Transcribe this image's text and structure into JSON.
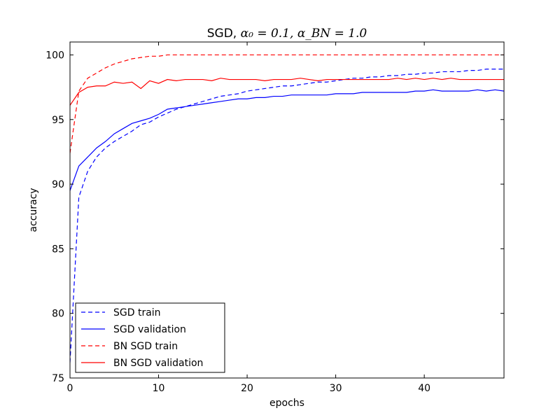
{
  "chart_data": {
    "type": "line",
    "title_prefix": "SGD, ",
    "title_math": "α₀ = 0.1,  α_BN = 1.0",
    "xlabel": "epochs",
    "ylabel": "accuracy",
    "xlim": [
      0,
      49
    ],
    "ylim": [
      75,
      101
    ],
    "xticks": [
      0,
      10,
      20,
      30,
      40
    ],
    "yticks": [
      75,
      80,
      85,
      90,
      95,
      100
    ],
    "legend_position": "bottom-left",
    "grid": false,
    "series": [
      {
        "name": "SGD train",
        "color": "#0000ff",
        "dash": true,
        "x": [
          0,
          1,
          2,
          3,
          4,
          5,
          6,
          7,
          8,
          9,
          10,
          11,
          12,
          13,
          14,
          15,
          16,
          17,
          18,
          19,
          20,
          21,
          22,
          23,
          24,
          25,
          26,
          27,
          28,
          29,
          30,
          31,
          32,
          33,
          34,
          35,
          36,
          37,
          38,
          39,
          40,
          41,
          42,
          43,
          44,
          45,
          46,
          47,
          48,
          49
        ],
        "y": [
          76.2,
          89.0,
          91.0,
          92.1,
          92.8,
          93.3,
          93.7,
          94.1,
          94.6,
          94.8,
          95.2,
          95.5,
          95.8,
          96.0,
          96.2,
          96.4,
          96.6,
          96.8,
          96.9,
          97.0,
          97.2,
          97.3,
          97.4,
          97.5,
          97.6,
          97.6,
          97.7,
          97.8,
          97.9,
          97.9,
          98.0,
          98.1,
          98.2,
          98.2,
          98.3,
          98.3,
          98.4,
          98.4,
          98.5,
          98.5,
          98.6,
          98.6,
          98.7,
          98.7,
          98.7,
          98.8,
          98.8,
          98.9,
          98.9,
          98.9
        ]
      },
      {
        "name": "SGD validation",
        "color": "#0000ff",
        "dash": false,
        "x": [
          0,
          1,
          2,
          3,
          4,
          5,
          6,
          7,
          8,
          9,
          10,
          11,
          12,
          13,
          14,
          15,
          16,
          17,
          18,
          19,
          20,
          21,
          22,
          23,
          24,
          25,
          26,
          27,
          28,
          29,
          30,
          31,
          32,
          33,
          34,
          35,
          36,
          37,
          38,
          39,
          40,
          41,
          42,
          43,
          44,
          45,
          46,
          47,
          48,
          49
        ],
        "y": [
          89.5,
          91.4,
          92.1,
          92.8,
          93.3,
          93.9,
          94.3,
          94.7,
          94.9,
          95.1,
          95.4,
          95.8,
          95.9,
          96.0,
          96.1,
          96.2,
          96.3,
          96.4,
          96.5,
          96.6,
          96.6,
          96.7,
          96.7,
          96.8,
          96.8,
          96.9,
          96.9,
          96.9,
          96.9,
          96.9,
          97.0,
          97.0,
          97.0,
          97.1,
          97.1,
          97.1,
          97.1,
          97.1,
          97.1,
          97.2,
          97.2,
          97.3,
          97.2,
          97.2,
          97.2,
          97.2,
          97.3,
          97.2,
          97.3,
          97.2
        ]
      },
      {
        "name": "BN SGD train",
        "color": "#ff0000",
        "dash": true,
        "x": [
          0,
          1,
          2,
          3,
          4,
          5,
          6,
          7,
          8,
          9,
          10,
          11,
          12,
          13,
          14,
          15,
          16,
          17,
          18,
          19,
          20,
          21,
          22,
          23,
          24,
          25,
          26,
          27,
          28,
          29,
          30,
          31,
          32,
          33,
          34,
          35,
          36,
          37,
          38,
          39,
          40,
          41,
          42,
          43,
          44,
          45,
          46,
          47,
          48,
          49
        ],
        "y": [
          92.4,
          97.2,
          98.2,
          98.6,
          99.0,
          99.3,
          99.5,
          99.7,
          99.8,
          99.9,
          99.9,
          100,
          100,
          100,
          100,
          100,
          100,
          100,
          100,
          100,
          100,
          100,
          100,
          100,
          100,
          100,
          100,
          100,
          100,
          100,
          100,
          100,
          100,
          100,
          100,
          100,
          100,
          100,
          100,
          100,
          100,
          100,
          100,
          100,
          100,
          100,
          100,
          100,
          100,
          100
        ]
      },
      {
        "name": "BN SGD validation",
        "color": "#ff0000",
        "dash": false,
        "x": [
          0,
          1,
          2,
          3,
          4,
          5,
          6,
          7,
          8,
          9,
          10,
          11,
          12,
          13,
          14,
          15,
          16,
          17,
          18,
          19,
          20,
          21,
          22,
          23,
          24,
          25,
          26,
          27,
          28,
          29,
          30,
          31,
          32,
          33,
          34,
          35,
          36,
          37,
          38,
          39,
          40,
          41,
          42,
          43,
          44,
          45,
          46,
          47,
          48,
          49
        ],
        "y": [
          96.1,
          97.1,
          97.5,
          97.6,
          97.6,
          97.9,
          97.8,
          97.9,
          97.4,
          98.0,
          97.8,
          98.1,
          98.0,
          98.1,
          98.1,
          98.1,
          98.0,
          98.2,
          98.1,
          98.1,
          98.1,
          98.1,
          98.0,
          98.1,
          98.1,
          98.1,
          98.2,
          98.1,
          98.0,
          98.1,
          98.1,
          98.1,
          98.1,
          98.1,
          98.1,
          98.1,
          98.1,
          98.2,
          98.1,
          98.2,
          98.1,
          98.2,
          98.1,
          98.2,
          98.1,
          98.1,
          98.1,
          98.1,
          98.1,
          98.1
        ]
      }
    ]
  }
}
